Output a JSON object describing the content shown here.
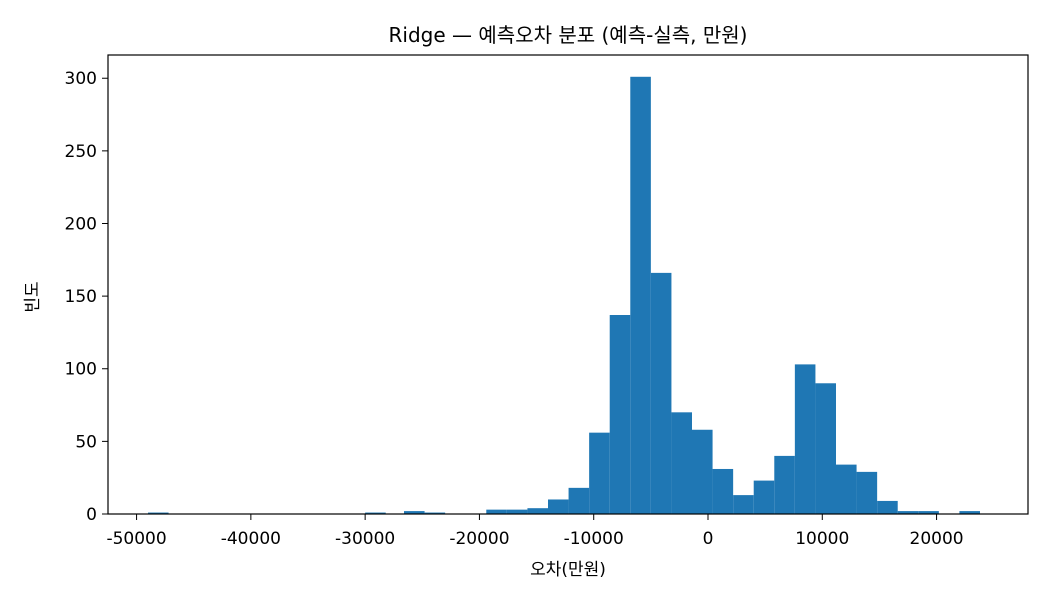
{
  "chart_data": {
    "type": "histogram",
    "title": "Ridge — 예측오차 분포 (예측-실측, 만원)",
    "xlabel": "오차(만원)",
    "ylabel": "빈도",
    "xlim": [
      -52500,
      28000
    ],
    "ylim": [
      0,
      316
    ],
    "xticks": [
      -50000,
      -40000,
      -30000,
      -20000,
      -10000,
      0,
      10000,
      20000
    ],
    "yticks": [
      0,
      50,
      100,
      150,
      200,
      250,
      300
    ],
    "grid": false,
    "bar_color": "#1f77b4",
    "bins": [
      {
        "x0": -49000,
        "x1": -47200,
        "count": 1
      },
      {
        "x0": -47200,
        "x1": -45400,
        "count": 0
      },
      {
        "x0": -30000,
        "x1": -28200,
        "count": 1
      },
      {
        "x0": -26600,
        "x1": -24800,
        "count": 2
      },
      {
        "x0": -24800,
        "x1": -23000,
        "count": 1
      },
      {
        "x0": -19400,
        "x1": -17600,
        "count": 3
      },
      {
        "x0": -17600,
        "x1": -15800,
        "count": 3
      },
      {
        "x0": -15800,
        "x1": -14000,
        "count": 4
      },
      {
        "x0": -14000,
        "x1": -12200,
        "count": 10
      },
      {
        "x0": -12200,
        "x1": -10400,
        "count": 18
      },
      {
        "x0": -10400,
        "x1": -8600,
        "count": 56
      },
      {
        "x0": -8600,
        "x1": -6800,
        "count": 137
      },
      {
        "x0": -6800,
        "x1": -5000,
        "count": 301
      },
      {
        "x0": -5000,
        "x1": -3200,
        "count": 166
      },
      {
        "x0": -3200,
        "x1": -1400,
        "count": 70
      },
      {
        "x0": -1400,
        "x1": 400,
        "count": 58
      },
      {
        "x0": 400,
        "x1": 2200,
        "count": 31
      },
      {
        "x0": 2200,
        "x1": 4000,
        "count": 13
      },
      {
        "x0": 4000,
        "x1": 5800,
        "count": 23
      },
      {
        "x0": 5800,
        "x1": 7600,
        "count": 40
      },
      {
        "x0": 7600,
        "x1": 9400,
        "count": 103
      },
      {
        "x0": 9400,
        "x1": 11200,
        "count": 90
      },
      {
        "x0": 11200,
        "x1": 13000,
        "count": 34
      },
      {
        "x0": 13000,
        "x1": 14800,
        "count": 29
      },
      {
        "x0": 14800,
        "x1": 16600,
        "count": 9
      },
      {
        "x0": 16600,
        "x1": 18400,
        "count": 2
      },
      {
        "x0": 18400,
        "x1": 20200,
        "count": 2
      },
      {
        "x0": 22000,
        "x1": 23800,
        "count": 2
      }
    ]
  }
}
